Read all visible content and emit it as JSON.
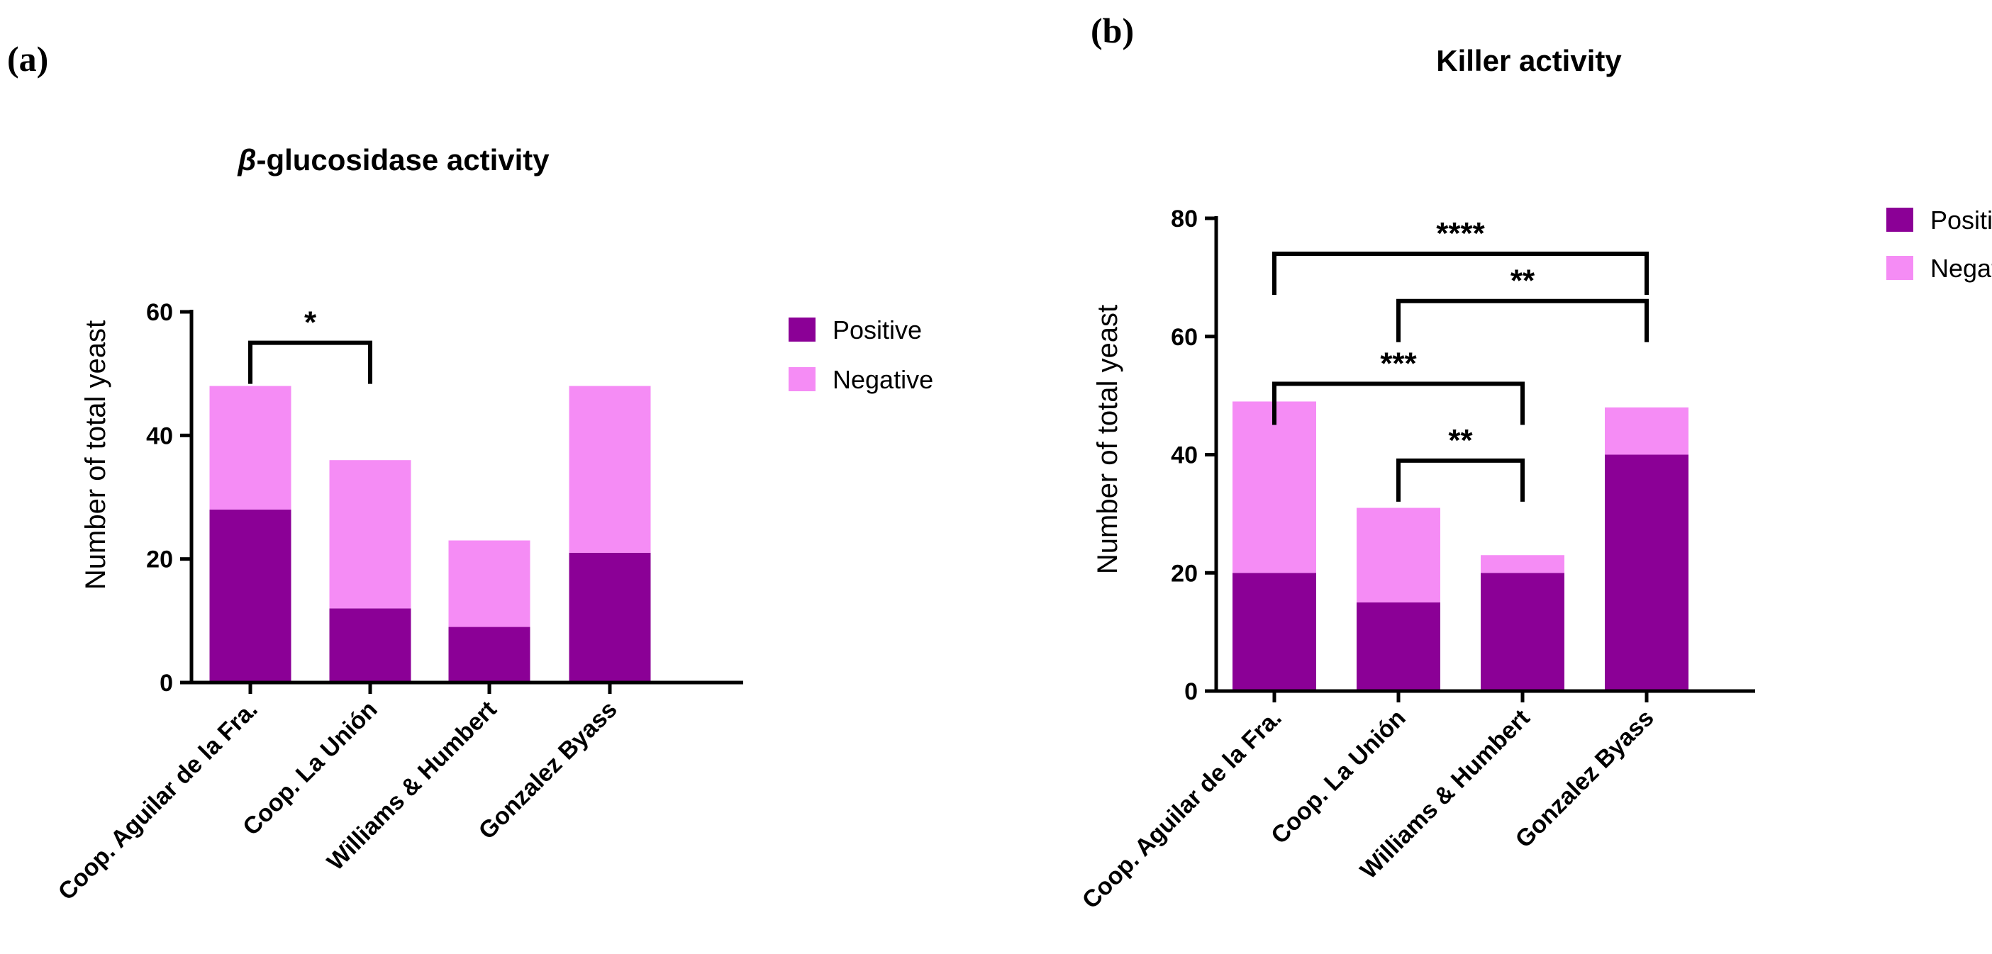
{
  "colors": {
    "positive": "#8B0096",
    "negative": "#F58CF5"
  },
  "chart_data": [
    {
      "panel_label": "(a)",
      "type": "bar",
      "stacked": true,
      "title": "β-glucosidase activity",
      "title_italic_prefix": "β",
      "title_rest": "-glucosidase activity",
      "xlabel": "",
      "ylabel": "Number of total yeast",
      "ylim": [
        0,
        60
      ],
      "yticks": [
        0,
        20,
        40,
        60
      ],
      "categories": [
        "Coop. Aguilar de la Fra.",
        "Coop. La Unión",
        "Williams & Humbert",
        "Gonzalez Byass"
      ],
      "series": [
        {
          "name": "Positive",
          "values": [
            28,
            12,
            9,
            21
          ]
        },
        {
          "name": "Negative",
          "values": [
            20,
            24,
            14,
            27
          ]
        }
      ],
      "legend": {
        "placement": "right",
        "entries": [
          "Positive",
          "Negative"
        ]
      },
      "significance": [
        {
          "from": 0,
          "to": 1,
          "label": "*",
          "level": 55
        }
      ]
    },
    {
      "panel_label": "(b)",
      "type": "bar",
      "stacked": true,
      "title": "Killer activity",
      "xlabel": "",
      "ylabel": "Number of total yeast",
      "ylim": [
        0,
        80
      ],
      "yticks": [
        0,
        20,
        40,
        60,
        80
      ],
      "categories": [
        "Coop. Aguilar de la Fra.",
        "Coop. La Unión",
        "Williams & Humbert",
        "Gonzalez Byass"
      ],
      "series": [
        {
          "name": "Positive",
          "values": [
            20,
            15,
            20,
            40
          ]
        },
        {
          "name": "Negative",
          "values": [
            29,
            16,
            3,
            8
          ]
        }
      ],
      "legend": {
        "placement": "right",
        "entries": [
          "Positive",
          "Negative"
        ]
      },
      "significance": [
        {
          "from": 0,
          "to": 3,
          "label": "****",
          "level": 74
        },
        {
          "from": 1,
          "to": 3,
          "label": "**",
          "level": 66
        },
        {
          "from": 0,
          "to": 2,
          "label": "***",
          "level": 52
        },
        {
          "from": 1,
          "to": 2,
          "label": "**",
          "level": 39
        }
      ]
    }
  ]
}
